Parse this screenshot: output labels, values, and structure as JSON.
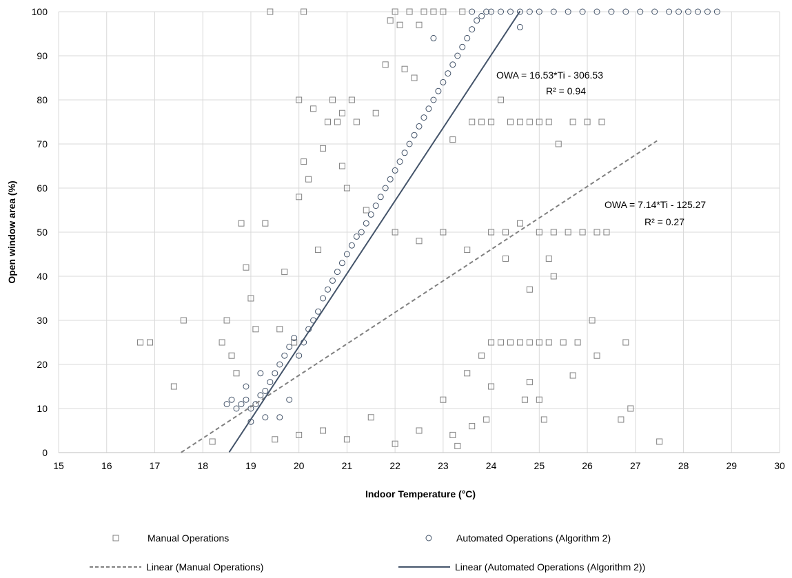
{
  "chart_data": {
    "type": "scatter",
    "title": "",
    "xlabel": "Indoor Temperature (°C)",
    "ylabel": "Open window area (%)",
    "xlim": [
      15,
      30
    ],
    "ylim": [
      0,
      100
    ],
    "x_ticks": [
      15,
      16,
      17,
      18,
      19,
      20,
      21,
      22,
      23,
      24,
      25,
      26,
      27,
      28,
      29,
      30
    ],
    "y_ticks": [
      0,
      10,
      20,
      30,
      40,
      50,
      60,
      70,
      80,
      90,
      100
    ],
    "grid": true,
    "legend_position": "bottom",
    "series": [
      {
        "name": "Manual Operations",
        "marker": "square",
        "color": "#808080",
        "points": [
          [
            16.7,
            25
          ],
          [
            16.9,
            25
          ],
          [
            17.4,
            15
          ],
          [
            17.6,
            30
          ],
          [
            18.2,
            2.5
          ],
          [
            18.4,
            25
          ],
          [
            18.5,
            30
          ],
          [
            18.6,
            22
          ],
          [
            18.7,
            18
          ],
          [
            18.8,
            52
          ],
          [
            18.9,
            42
          ],
          [
            19.0,
            35
          ],
          [
            19.1,
            28
          ],
          [
            19.3,
            52
          ],
          [
            19.4,
            100
          ],
          [
            19.6,
            28
          ],
          [
            19.7,
            41
          ],
          [
            19.9,
            25
          ],
          [
            20.0,
            80
          ],
          [
            20.0,
            58
          ],
          [
            20.1,
            66
          ],
          [
            20.1,
            100
          ],
          [
            20.2,
            62
          ],
          [
            20.3,
            78
          ],
          [
            20.4,
            46
          ],
          [
            20.5,
            69
          ],
          [
            20.6,
            75
          ],
          [
            20.7,
            80
          ],
          [
            20.8,
            75
          ],
          [
            20.9,
            77
          ],
          [
            20.9,
            65
          ],
          [
            21.0,
            60
          ],
          [
            21.1,
            80
          ],
          [
            21.2,
            75
          ],
          [
            21.4,
            55
          ],
          [
            21.6,
            77
          ],
          [
            21.8,
            88
          ],
          [
            21.9,
            98
          ],
          [
            22.0,
            100
          ],
          [
            22.1,
            97
          ],
          [
            22.2,
            87
          ],
          [
            22.3,
            100
          ],
          [
            22.4,
            85
          ],
          [
            22.5,
            97
          ],
          [
            22.6,
            100
          ],
          [
            22.8,
            100
          ],
          [
            23.0,
            100
          ],
          [
            23.2,
            71
          ],
          [
            23.4,
            100
          ],
          [
            23.6,
            75
          ],
          [
            23.8,
            75
          ],
          [
            24.0,
            75
          ],
          [
            24.2,
            80
          ],
          [
            24.4,
            75
          ],
          [
            24.6,
            75
          ],
          [
            24.8,
            75
          ],
          [
            25.0,
            75
          ],
          [
            25.2,
            75
          ],
          [
            25.4,
            70
          ],
          [
            25.7,
            75
          ],
          [
            26.0,
            75
          ],
          [
            26.3,
            75
          ],
          [
            22.0,
            50
          ],
          [
            22.5,
            48
          ],
          [
            23.0,
            50
          ],
          [
            23.5,
            46
          ],
          [
            24.0,
            50
          ],
          [
            24.3,
            50
          ],
          [
            24.6,
            52
          ],
          [
            25.0,
            50
          ],
          [
            25.3,
            50
          ],
          [
            25.6,
            50
          ],
          [
            25.9,
            50
          ],
          [
            26.2,
            50
          ],
          [
            26.4,
            50
          ],
          [
            24.3,
            44
          ],
          [
            25.2,
            44
          ],
          [
            24.8,
            37
          ],
          [
            25.3,
            40
          ],
          [
            19.5,
            3
          ],
          [
            20.0,
            4
          ],
          [
            20.5,
            5
          ],
          [
            21.0,
            3
          ],
          [
            21.5,
            8
          ],
          [
            22.0,
            2
          ],
          [
            22.5,
            5
          ],
          [
            23.0,
            12
          ],
          [
            23.2,
            4
          ],
          [
            23.3,
            1.5
          ],
          [
            23.5,
            18
          ],
          [
            23.8,
            22
          ],
          [
            24.0,
            25
          ],
          [
            24.2,
            25
          ],
          [
            24.4,
            25
          ],
          [
            24.6,
            25
          ],
          [
            24.8,
            25
          ],
          [
            25.0,
            25
          ],
          [
            25.2,
            25
          ],
          [
            25.5,
            25
          ],
          [
            25.8,
            25
          ],
          [
            26.1,
            30
          ],
          [
            26.2,
            22
          ],
          [
            26.8,
            25
          ],
          [
            24.7,
            12
          ],
          [
            25.0,
            12
          ],
          [
            25.1,
            7.5
          ],
          [
            25.7,
            17.5
          ],
          [
            26.7,
            7.5
          ],
          [
            26.9,
            10
          ],
          [
            27.5,
            2.5
          ],
          [
            24.8,
            16
          ],
          [
            24.0,
            15
          ],
          [
            23.9,
            7.5
          ],
          [
            23.6,
            6
          ]
        ]
      },
      {
        "name": "Automated Operations (Algorithm 2)",
        "marker": "circle",
        "color": "#44546A",
        "points": [
          [
            18.5,
            11
          ],
          [
            18.6,
            12
          ],
          [
            18.7,
            10
          ],
          [
            18.8,
            11
          ],
          [
            18.9,
            12
          ],
          [
            19.0,
            10
          ],
          [
            19.1,
            11
          ],
          [
            19.2,
            13
          ],
          [
            19.3,
            14
          ],
          [
            19.4,
            16
          ],
          [
            19.5,
            18
          ],
          [
            19.6,
            20
          ],
          [
            19.7,
            22
          ],
          [
            19.8,
            24
          ],
          [
            19.9,
            26
          ],
          [
            20.0,
            22
          ],
          [
            20.1,
            25
          ],
          [
            20.2,
            28
          ],
          [
            20.3,
            30
          ],
          [
            20.4,
            32
          ],
          [
            20.5,
            35
          ],
          [
            20.6,
            37
          ],
          [
            20.7,
            39
          ],
          [
            20.8,
            41
          ],
          [
            20.9,
            43
          ],
          [
            21.0,
            45
          ],
          [
            21.1,
            47
          ],
          [
            21.2,
            49
          ],
          [
            21.3,
            50
          ],
          [
            21.4,
            52
          ],
          [
            21.5,
            54
          ],
          [
            21.6,
            56
          ],
          [
            21.7,
            58
          ],
          [
            21.8,
            60
          ],
          [
            21.9,
            62
          ],
          [
            22.0,
            64
          ],
          [
            22.1,
            66
          ],
          [
            22.2,
            68
          ],
          [
            22.3,
            70
          ],
          [
            22.4,
            72
          ],
          [
            22.5,
            74
          ],
          [
            22.6,
            76
          ],
          [
            22.7,
            78
          ],
          [
            22.8,
            80
          ],
          [
            22.9,
            82
          ],
          [
            23.0,
            84
          ],
          [
            23.1,
            86
          ],
          [
            23.2,
            88
          ],
          [
            23.3,
            90
          ],
          [
            23.4,
            92
          ],
          [
            23.5,
            94
          ],
          [
            23.6,
            96
          ],
          [
            23.7,
            98
          ],
          [
            23.8,
            99
          ],
          [
            23.9,
            100
          ],
          [
            24.0,
            100
          ],
          [
            24.2,
            100
          ],
          [
            24.4,
            100
          ],
          [
            24.6,
            100
          ],
          [
            24.8,
            100
          ],
          [
            25.0,
            100
          ],
          [
            25.3,
            100
          ],
          [
            25.6,
            100
          ],
          [
            25.9,
            100
          ],
          [
            26.2,
            100
          ],
          [
            26.5,
            100
          ],
          [
            26.8,
            100
          ],
          [
            27.1,
            100
          ],
          [
            27.4,
            100
          ],
          [
            27.7,
            100
          ],
          [
            27.9,
            100
          ],
          [
            28.1,
            100
          ],
          [
            28.3,
            100
          ],
          [
            28.5,
            100
          ],
          [
            28.7,
            100
          ],
          [
            23.6,
            100
          ],
          [
            22.8,
            94
          ],
          [
            24.6,
            96.5
          ],
          [
            19.0,
            7
          ],
          [
            19.3,
            8
          ],
          [
            19.6,
            8
          ],
          [
            18.9,
            15
          ],
          [
            19.2,
            18
          ],
          [
            19.8,
            12
          ]
        ]
      }
    ],
    "trendlines": [
      {
        "name": "Linear (Manual Operations)",
        "style": "dashed",
        "color": "#808080",
        "slope": 7.14,
        "intercept": -125.27,
        "x_range": [
          17.55,
          27.45
        ],
        "equation": "OWA = 7.14*Ti - 125.27",
        "r2": "R² = 0.27"
      },
      {
        "name": "Linear (Automated Operations (Algorithm 2))",
        "style": "solid",
        "color": "#44546A",
        "slope": 16.53,
        "intercept": -306.53,
        "x_range": [
          18.55,
          24.6
        ],
        "equation": "OWA = 16.53*Ti - 306.53",
        "r2": "R² = 0.94"
      }
    ],
    "legend": [
      "Manual Operations",
      "Automated Operations (Algorithm 2)",
      "Linear (Manual Operations)",
      "Linear (Automated Operations (Algorithm 2))"
    ]
  }
}
